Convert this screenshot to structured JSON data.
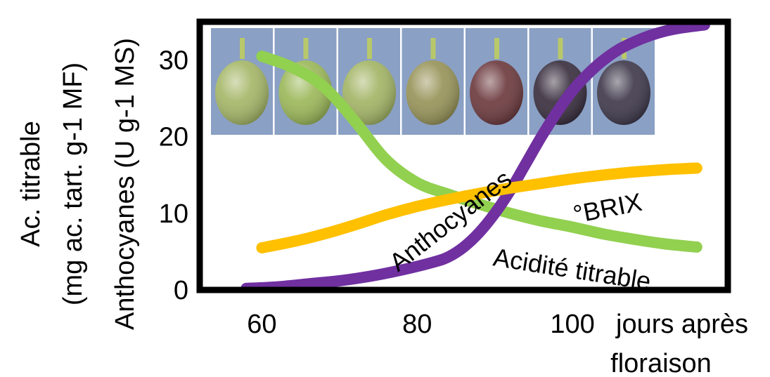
{
  "chart_data": {
    "type": "line",
    "xlabel": [
      "jours après",
      "floraison"
    ],
    "ylabel": [
      "Ac. titrable",
      "(mg ac. tart. g-1 MF)",
      "Anthocyanes (U g-1 MS)"
    ],
    "x_ticks": [
      "60",
      "80",
      "100"
    ],
    "y_ticks": [
      "0",
      "10",
      "20",
      "30"
    ],
    "xlim": [
      52,
      120
    ],
    "ylim": [
      0,
      35
    ],
    "series": [
      {
        "name": "Acidité titrable",
        "color": "#92d050",
        "x": [
          60,
          64,
          68,
          72,
          76,
          80,
          84,
          88,
          92,
          96,
          100,
          104,
          108,
          112,
          116
        ],
        "y": [
          30.5,
          29,
          26.5,
          22,
          17,
          14,
          12.5,
          11.2,
          10,
          9,
          8.2,
          7.3,
          6.6,
          6,
          5.6
        ]
      },
      {
        "name": "Anthocyanes",
        "color": "#7030a0",
        "x": [
          58,
          62,
          66,
          70,
          74,
          78,
          82,
          84,
          86,
          88,
          90,
          92,
          94,
          96,
          98,
          100,
          102,
          104,
          106,
          108,
          110,
          112,
          114,
          117
        ],
        "y": [
          0.2,
          0.4,
          0.8,
          1.2,
          1.8,
          2.6,
          3.6,
          4.3,
          5.6,
          7.5,
          10,
          13,
          16.5,
          20,
          23.2,
          26,
          28.2,
          30,
          31.4,
          32.4,
          33.2,
          33.8,
          34.2,
          34.6
        ]
      },
      {
        "name": "°BRIX",
        "color": "#ffc000",
        "x": [
          60,
          64,
          68,
          72,
          76,
          80,
          84,
          88,
          92,
          96,
          100,
          104,
          108,
          112,
          116
        ],
        "y": [
          5.5,
          6.3,
          7.3,
          8.5,
          9.8,
          10.9,
          11.8,
          12.6,
          13.3,
          13.9,
          14.5,
          15,
          15.4,
          15.7,
          15.9
        ]
      }
    ],
    "photo_colors": [
      "#a5b768",
      "#9cb85a",
      "#a3b566",
      "#98945a",
      "#6d3b3f",
      "#3a2f3f",
      "#403a4c"
    ],
    "photo_bg": "#8aa0c4"
  }
}
